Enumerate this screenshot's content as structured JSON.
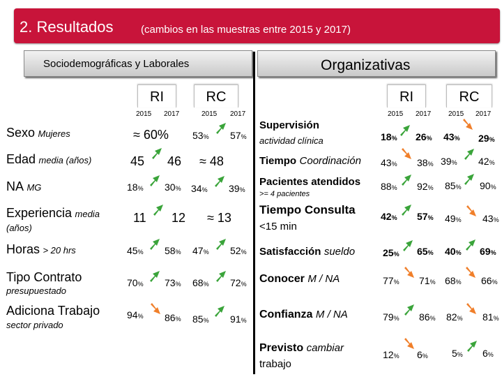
{
  "header": {
    "title": "2. Resultados",
    "subtitle": "(cambios en las muestras entre 2015 y 2017)"
  },
  "sections": {
    "left_title": "Sociodemográficas y Laborales",
    "right_title": "Organizativas"
  },
  "groups": {
    "ri": "RI",
    "rc": "RC"
  },
  "years": {
    "y1": "2015",
    "y2": "2017"
  },
  "colors": {
    "title_bg": "#c8143a",
    "arrow_up": "#3aa43a",
    "arrow_down": "#f07f2a"
  },
  "left_rows": [
    {
      "label": "Sexo",
      "sub": "Mujeres",
      "ri_2015": "≈ 60%",
      "rc_2015": "53",
      "rc_2017": "57",
      "rc_arrow": "up"
    },
    {
      "label": "Edad",
      "sub": "media (años)",
      "ri_2015": "45",
      "ri_2017": "46",
      "ri_arrow": "up",
      "rc_2015": "≈ 48"
    },
    {
      "label": "NA",
      "sub": "MG",
      "ri_2015": "18",
      "ri_2017": "30",
      "ri_arrow": "up",
      "rc_2015": "34",
      "rc_2017": "39",
      "rc_arrow": "up"
    },
    {
      "label": "Experiencia",
      "sub": "media",
      "sub2": "(años)",
      "ri_2015": "11",
      "ri_2017": "12",
      "ri_arrow": "up",
      "rc_2015": "≈ 13"
    },
    {
      "label": "Horas",
      "sub": "> 20 hrs",
      "ri_2015": "45",
      "ri_2017": "58",
      "ri_arrow": "up",
      "rc_2015": "47",
      "rc_2017": "52",
      "rc_arrow": "up"
    },
    {
      "label": "Tipo Contrato",
      "sub": "presupuestado",
      "ri_2015": "70",
      "ri_2017": "73",
      "ri_arrow": "up",
      "rc_2015": "68",
      "rc_2017": "72",
      "rc_arrow": "up"
    },
    {
      "label": "Adiciona Trabajo",
      "sub": "sector privado",
      "ri_2015": "94",
      "ri_2017": "86",
      "ri_arrow": "down",
      "rc_2015": "85",
      "rc_2017": "91",
      "rc_arrow": "up"
    }
  ],
  "right_rows": [
    {
      "label": "Supervisión",
      "sub": "actividad clínica",
      "ri_2015": "18",
      "ri_2017": "26",
      "ri_arrow": "up",
      "rc_2015": "43",
      "rc_2017": "29",
      "rc_arrow": "down"
    },
    {
      "label": "Tiempo",
      "sub": "Coordinación",
      "ri_2015": "43",
      "ri_2017": "38",
      "ri_arrow": "down",
      "rc_2015": "39",
      "rc_2017": "42",
      "rc_arrow": "up"
    },
    {
      "label": "Pacientes atendidos",
      "sub": ">= 4 pacientes",
      "ri_2015": "88",
      "ri_2017": "92",
      "ri_arrow": "up",
      "rc_2015": "85",
      "rc_2017": "90",
      "rc_arrow": "up"
    },
    {
      "label": "Tiempo Consulta",
      "sub": "<15 min",
      "ri_2015": "42",
      "ri_2017": "57",
      "ri_arrow": "up",
      "rc_2015": "49",
      "rc_2017": "43",
      "rc_arrow": "down"
    },
    {
      "label": "Satisfacción",
      "sub": "sueldo",
      "ri_2015": "25",
      "ri_2017": "65",
      "ri_arrow": "up",
      "rc_2015": "40",
      "rc_2017": "69",
      "rc_arrow": "up"
    },
    {
      "label": "Conocer",
      "sub": "M / NA",
      "ri_2015": "77",
      "ri_2017": "71",
      "ri_arrow": "down",
      "rc_2015": "68",
      "rc_2017": "66",
      "rc_arrow": "down"
    },
    {
      "label": "Confianza",
      "sub": "M / NA",
      "ri_2015": "79",
      "ri_2017": "86",
      "ri_arrow": "up",
      "rc_2015": "82",
      "rc_2017": "81",
      "rc_arrow": "down"
    },
    {
      "label": "Previsto",
      "sub": "cambiar",
      "sub2": "trabajo",
      "ri_2015": "12",
      "ri_2017": "6",
      "ri_arrow": "down",
      "rc_2015": "5",
      "rc_2017": "6",
      "rc_arrow": "up"
    }
  ],
  "pct": "%"
}
